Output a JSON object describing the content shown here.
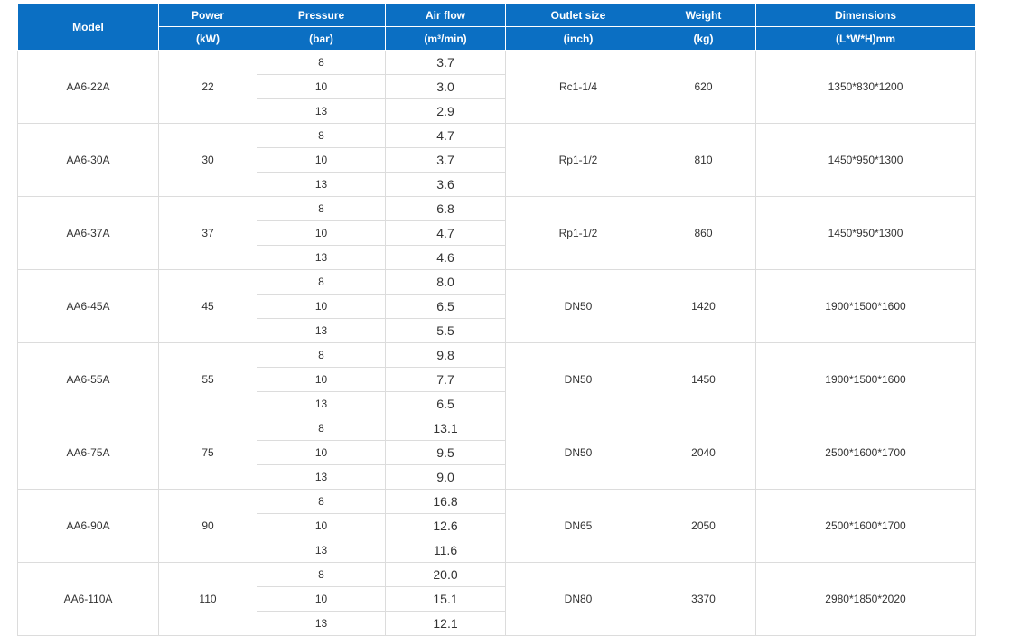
{
  "header": {
    "model": "Model",
    "columns": [
      {
        "name": "Power",
        "unit": "(kW)"
      },
      {
        "name": "Pressure",
        "unit": "(bar)"
      },
      {
        "name": "Air flow",
        "unit": "(m³/min)"
      },
      {
        "name": "Outlet size",
        "unit": "(inch)"
      },
      {
        "name": "Weight",
        "unit": "(kg)"
      },
      {
        "name": "Dimensions",
        "unit": "(L*W*H)mm"
      }
    ]
  },
  "rows": [
    {
      "model": "AA6-22A",
      "power": "22",
      "pressures": [
        {
          "pressure": "8",
          "air_flow": "3.7"
        },
        {
          "pressure": "10",
          "air_flow": "3.0"
        },
        {
          "pressure": "13",
          "air_flow": "2.9"
        }
      ],
      "outlet": "Rc1-1/4",
      "weight": "620",
      "dimensions": "1350*830*1200"
    },
    {
      "model": "AA6-30A",
      "power": "30",
      "pressures": [
        {
          "pressure": "8",
          "air_flow": "4.7"
        },
        {
          "pressure": "10",
          "air_flow": "3.7"
        },
        {
          "pressure": "13",
          "air_flow": "3.6"
        }
      ],
      "outlet": "Rp1-1/2",
      "weight": "810",
      "dimensions": "1450*950*1300"
    },
    {
      "model": "AA6-37A",
      "power": "37",
      "pressures": [
        {
          "pressure": "8",
          "air_flow": "6.8"
        },
        {
          "pressure": "10",
          "air_flow": "4.7"
        },
        {
          "pressure": "13",
          "air_flow": "4.6"
        }
      ],
      "outlet": "Rp1-1/2",
      "weight": "860",
      "dimensions": "1450*950*1300"
    },
    {
      "model": "AA6-45A",
      "power": "45",
      "pressures": [
        {
          "pressure": "8",
          "air_flow": "8.0"
        },
        {
          "pressure": "10",
          "air_flow": "6.5"
        },
        {
          "pressure": "13",
          "air_flow": "5.5"
        }
      ],
      "outlet": "DN50",
      "weight": "1420",
      "dimensions": "1900*1500*1600"
    },
    {
      "model": "AA6-55A",
      "power": "55",
      "pressures": [
        {
          "pressure": "8",
          "air_flow": "9.8"
        },
        {
          "pressure": "10",
          "air_flow": "7.7"
        },
        {
          "pressure": "13",
          "air_flow": "6.5"
        }
      ],
      "outlet": "DN50",
      "weight": "1450",
      "dimensions": "1900*1500*1600"
    },
    {
      "model": "AA6-75A",
      "power": "75",
      "pressures": [
        {
          "pressure": "8",
          "air_flow": "13.1"
        },
        {
          "pressure": "10",
          "air_flow": "9.5"
        },
        {
          "pressure": "13",
          "air_flow": "9.0"
        }
      ],
      "outlet": "DN50",
      "weight": "2040",
      "dimensions": "2500*1600*1700"
    },
    {
      "model": "AA6-90A",
      "power": "90",
      "pressures": [
        {
          "pressure": "8",
          "air_flow": "16.8"
        },
        {
          "pressure": "10",
          "air_flow": "12.6"
        },
        {
          "pressure": "13",
          "air_flow": "11.6"
        }
      ],
      "outlet": "DN65",
      "weight": "2050",
      "dimensions": "2500*1600*1700"
    },
    {
      "model": "AA6-110A",
      "power": "110",
      "pressures": [
        {
          "pressure": "8",
          "air_flow": "20.0"
        },
        {
          "pressure": "10",
          "air_flow": "15.1"
        },
        {
          "pressure": "13",
          "air_flow": "12.1"
        }
      ],
      "outlet": "DN80",
      "weight": "3370",
      "dimensions": "2980*1850*2020"
    }
  ]
}
